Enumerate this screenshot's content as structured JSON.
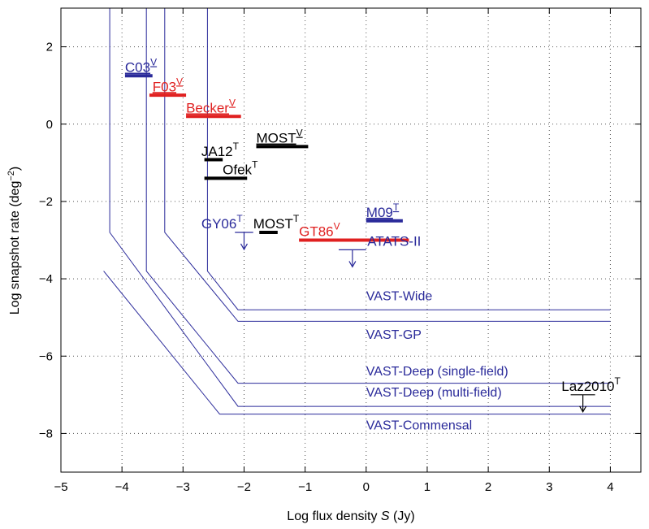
{
  "chart_data": {
    "type": "line",
    "xlabel_prefix": "Log flux density ",
    "xlabel_symbol": "S",
    "xlabel_suffix": " (Jy)",
    "ylabel_text": "Log snapshot rate (deg",
    "ylabel_exp": "−2",
    "ylabel_close": ")",
    "xlim": [
      -5,
      4.5
    ],
    "ylim": [
      -9,
      3
    ],
    "xticks": [
      -5,
      -4,
      -3,
      -2,
      -1,
      0,
      1,
      2,
      3,
      4
    ],
    "xtick_labels": [
      "−5",
      "−4",
      "−3",
      "−2",
      "−1",
      "0",
      "1",
      "2",
      "3",
      "4"
    ],
    "yticks": [
      -8,
      -6,
      -4,
      -2,
      0,
      2
    ],
    "ytick_labels": [
      "−8",
      "−6",
      "−4",
      "−2",
      "0",
      "2"
    ],
    "grid": true,
    "curve_color": "#2a2a9a",
    "curves": [
      {
        "name": "VAST-Wide",
        "label_at": [
          0,
          -4.55
        ],
        "points": [
          [
            -2.6,
            3
          ],
          [
            -2.6,
            -3.8
          ],
          [
            -2.1,
            -4.8
          ],
          [
            4,
            -4.8
          ]
        ]
      },
      {
        "name": "VAST-GP",
        "label_at": [
          0,
          -5.55
        ],
        "points": [
          [
            -3.3,
            3
          ],
          [
            -3.3,
            -2.8
          ],
          [
            -2.1,
            -5.1
          ],
          [
            4,
            -5.1
          ]
        ]
      },
      {
        "name": "VAST-Deep (single-field)",
        "label_at": [
          0,
          -6.5
        ],
        "points": [
          [
            -3.6,
            3
          ],
          [
            -3.6,
            -3.8
          ],
          [
            -2.1,
            -6.7
          ],
          [
            4,
            -6.7
          ]
        ]
      },
      {
        "name": "VAST-Deep (multi-field)",
        "label_at": [
          0,
          -7.05
        ],
        "points": [
          [
            -4.2,
            3
          ],
          [
            -4.2,
            -2.8
          ],
          [
            -2.1,
            -7.3
          ],
          [
            4,
            -7.3
          ]
        ]
      },
      {
        "name": "VAST-Commensal",
        "label_at": [
          0,
          -7.9
        ],
        "points": [
          [
            -4.3,
            -3.8
          ],
          [
            -2.4,
            -7.5
          ],
          [
            4,
            -7.5
          ]
        ]
      }
    ],
    "surveys": [
      {
        "name": "C03",
        "sup": "V",
        "x": [
          -3.95,
          -3.5
        ],
        "y": 1.25,
        "color": "#2a2a9a",
        "text_at": [
          -3.95,
          1.35
        ],
        "underline": true
      },
      {
        "name": "F03",
        "sup": "V",
        "x": [
          -3.55,
          -2.95
        ],
        "y": 0.75,
        "color": "#e02020",
        "text_at": [
          -3.5,
          0.85
        ],
        "underline": true
      },
      {
        "name": "Becker",
        "sup": "V",
        "x": [
          -2.95,
          -2.05
        ],
        "y": 0.2,
        "color": "#e02020",
        "text_at": [
          -2.95,
          0.3
        ],
        "underline": true
      },
      {
        "name": "MOST",
        "sup": "V",
        "x": [
          -1.8,
          -0.95
        ],
        "y": -0.58,
        "color": "#000000",
        "text_at": [
          -1.8,
          -0.48
        ],
        "underline": true
      },
      {
        "name": "JA12",
        "sup": "T",
        "x": [
          -2.65,
          -2.35
        ],
        "y": -0.92,
        "color": "#000000",
        "text_at": [
          -2.7,
          -0.82
        ],
        "underline": false
      },
      {
        "name": "Ofek",
        "sup": "T",
        "x": [
          -2.65,
          -1.95
        ],
        "y": -1.4,
        "color": "#000000",
        "text_at": [
          -2.35,
          -1.3
        ],
        "underline": false
      },
      {
        "name": "M09",
        "sup": "T",
        "x": [
          0,
          0.6
        ],
        "y": -2.5,
        "color": "#2a2a9a",
        "text_at": [
          0,
          -2.4
        ],
        "underline": true
      },
      {
        "name": "GY06",
        "sup": "T",
        "x": [
          -2.15,
          -1.85
        ],
        "y": -2.8,
        "color": "#2a2a9a",
        "text_at": [
          -2.7,
          -2.7
        ],
        "underline": false,
        "upper_limit": true
      },
      {
        "name": "MOST",
        "sup": "T",
        "x": [
          -1.75,
          -1.45
        ],
        "y": -2.8,
        "color": "#000000",
        "text_at": [
          -1.85,
          -2.7
        ],
        "underline": false
      },
      {
        "name": "GT86",
        "sup": "V",
        "x": [
          -1.1,
          0.7
        ],
        "y": -3.0,
        "color": "#e02020",
        "text_at": [
          -1.1,
          -2.9
        ],
        "underline": false
      },
      {
        "name": "ATATS-II",
        "sup": "",
        "x": [
          -0.45,
          0
        ],
        "y": -3.25,
        "color": "#2a2a9a",
        "text_at": [
          0.02,
          -3.15
        ],
        "underline": false,
        "upper_limit": true
      },
      {
        "name": "Laz2010",
        "sup": "T",
        "x": [
          3.35,
          3.75
        ],
        "y": -7.0,
        "color": "#000000",
        "text_at": [
          3.2,
          -6.9
        ],
        "underline": false,
        "upper_limit": true
      }
    ]
  }
}
